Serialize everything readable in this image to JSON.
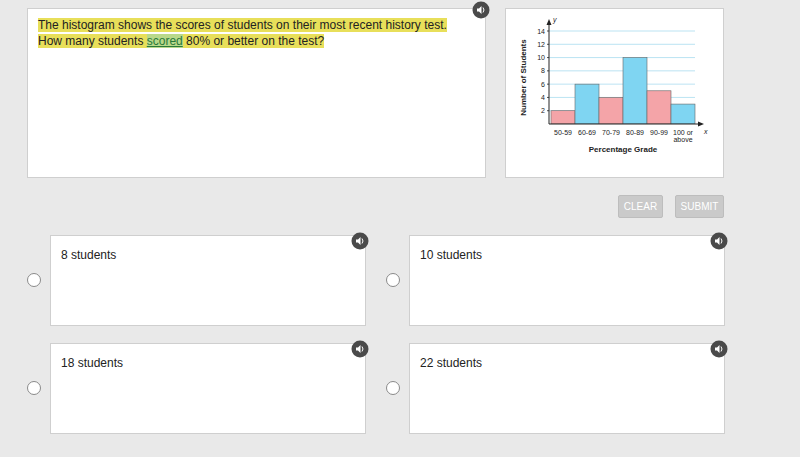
{
  "question": {
    "before": "The histogram shows the scores of students on their most recent history test. How many students ",
    "link": "scored",
    "after": " 80% or better on the test?"
  },
  "buttons": [
    "CLEAR",
    "SUBMIT"
  ],
  "options": [
    "8 students",
    "10 students",
    "18 students",
    "22 students"
  ],
  "chart_data": {
    "type": "bar",
    "categories": [
      "50-59",
      "60-69",
      "70-79",
      "80-89",
      "90-99",
      "100 or above"
    ],
    "values": [
      2,
      6,
      4,
      10,
      5,
      3
    ],
    "colors": [
      "#f4a4a8",
      "#7fd5f2",
      "#f4a4a8",
      "#7fd5f2",
      "#f4a4a8",
      "#7fd5f2"
    ],
    "x_label": "Percentage Grade",
    "y_label": "Number of Students",
    "x_axis_name": "x",
    "y_axis_name": "y",
    "ylim": [
      0,
      14
    ],
    "yticks": [
      2,
      4,
      6,
      8,
      10,
      12,
      14
    ],
    "grid": true
  }
}
